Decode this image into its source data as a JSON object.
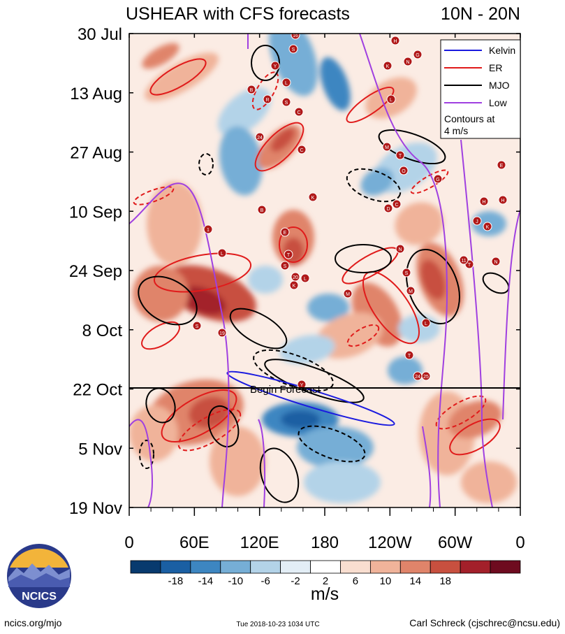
{
  "chart_data": {
    "type": "heatmap",
    "title_left": "USHEAR with CFS forecasts",
    "title_right": "10N - 20N",
    "variable": "USHEAR",
    "units": "m/s",
    "x_ticks": [
      "0",
      "60E",
      "120E",
      "180",
      "120W",
      "60W",
      "0"
    ],
    "y_ticks": [
      "30 Jul",
      "13 Aug",
      "27 Aug",
      "10 Sep",
      "24 Sep",
      "8 Oct",
      "22 Oct",
      "5 Nov",
      "19 Nov"
    ],
    "forecast_label": "Begin Forecast",
    "legend": [
      {
        "label": "Kelvin",
        "color": "#1a1adf"
      },
      {
        "label": "ER",
        "color": "#e01b1b"
      },
      {
        "label": "MJO",
        "color": "#000000"
      },
      {
        "label": "Low",
        "color": "#a040e0"
      }
    ],
    "contour_note": [
      "Contours at",
      "4 m/s"
    ],
    "colorbar_labels": [
      "-18",
      "-14",
      "-10",
      "-6",
      "-2",
      "2",
      "6",
      "10",
      "14",
      "18"
    ],
    "colorbar_colors": [
      "#083a6e",
      "#1a5fa3",
      "#3d86c1",
      "#76aed6",
      "#b3d3e8",
      "#e3eef6",
      "#ffffff",
      "#f9ded0",
      "#f0b39a",
      "#e0846a",
      "#c8503f",
      "#a3202a",
      "#6e0b1f"
    ],
    "storm_labels": [
      "16",
      "S",
      "Y",
      "L",
      "B",
      "R",
      "S",
      "C",
      "24",
      "C",
      "H",
      "K",
      "N",
      "G",
      "L",
      "M",
      "T",
      "O",
      "G",
      "E",
      "H",
      "H",
      "K",
      "B",
      "1",
      "C",
      "D",
      "E",
      "J",
      "K",
      "L",
      "T",
      "S",
      "20",
      "K",
      "L",
      "M",
      "N",
      "S",
      "M",
      "L",
      "T",
      "11",
      "N",
      "T",
      "24",
      "25",
      "Y",
      "S",
      "19"
    ]
  },
  "footer": {
    "logo_text": "NCICS",
    "site": "ncics.org/mjo",
    "timestamp": "Tue 2018-10-23 1034 UTC",
    "author": "Carl Schreck (cjschrec@ncsu.edu)"
  }
}
